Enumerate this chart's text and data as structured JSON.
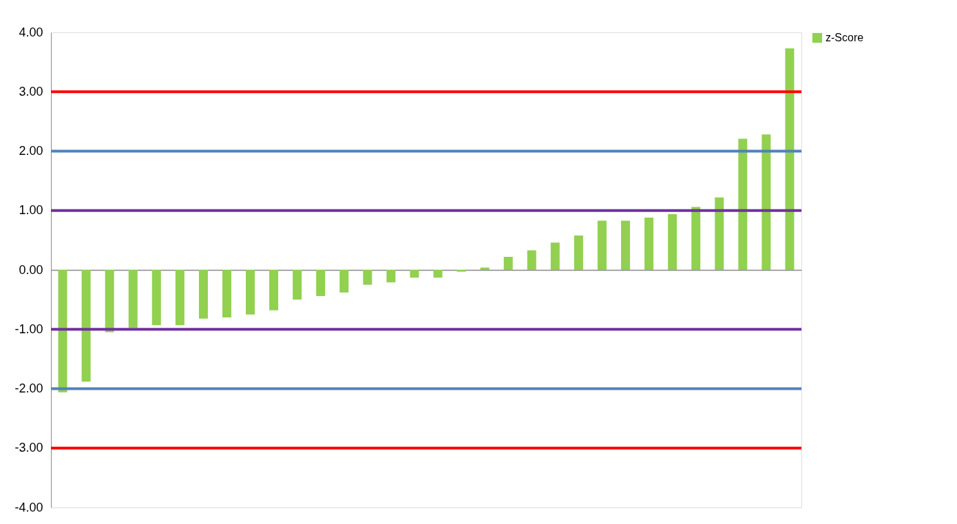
{
  "chart_data": {
    "type": "bar",
    "categories": [
      null,
      null,
      null,
      null,
      null,
      null,
      null,
      null,
      null,
      null,
      null,
      null,
      null,
      null,
      null,
      null,
      null,
      null,
      null,
      null,
      null,
      null,
      null,
      null,
      null,
      null,
      null,
      null,
      null,
      null,
      null,
      null
    ],
    "series": [
      {
        "name": "z-Score",
        "color": "#92d050",
        "values": [
          -2.06,
          -1.88,
          -1.05,
          -0.98,
          -0.93,
          -0.93,
          -0.82,
          -0.8,
          -0.75,
          -0.68,
          -0.5,
          -0.44,
          -0.38,
          -0.25,
          -0.21,
          -0.13,
          -0.13,
          -0.03,
          0.04,
          0.22,
          0.33,
          0.46,
          0.58,
          0.83,
          0.83,
          0.88,
          0.94,
          1.06,
          1.22,
          2.21,
          2.28,
          3.73
        ]
      }
    ],
    "ylim": [
      -4,
      4
    ],
    "yticks": [
      {
        "value": -4,
        "label": "-4.00"
      },
      {
        "value": -3,
        "label": "-3.00"
      },
      {
        "value": -2,
        "label": "-2.00"
      },
      {
        "value": -1,
        "label": "-1.00"
      },
      {
        "value": 0,
        "label": "0.00"
      },
      {
        "value": 1,
        "label": "1.00"
      },
      {
        "value": 2,
        "label": "2.00"
      },
      {
        "value": 3,
        "label": "3.00"
      },
      {
        "value": 4,
        "label": "4.00"
      }
    ],
    "ref_lines": [
      {
        "axis": "y",
        "value": 3,
        "color": "#ff0000"
      },
      {
        "axis": "y",
        "value": 2,
        "color": "#4f81bd"
      },
      {
        "axis": "y",
        "value": 1,
        "color": "#7030a0"
      },
      {
        "axis": "y",
        "value": -1,
        "color": "#7030a0"
      },
      {
        "axis": "y",
        "value": -2,
        "color": "#4f81bd"
      },
      {
        "axis": "y",
        "value": -3,
        "color": "#ff0000"
      }
    ],
    "legend": "right",
    "tick_labels": "y"
  }
}
